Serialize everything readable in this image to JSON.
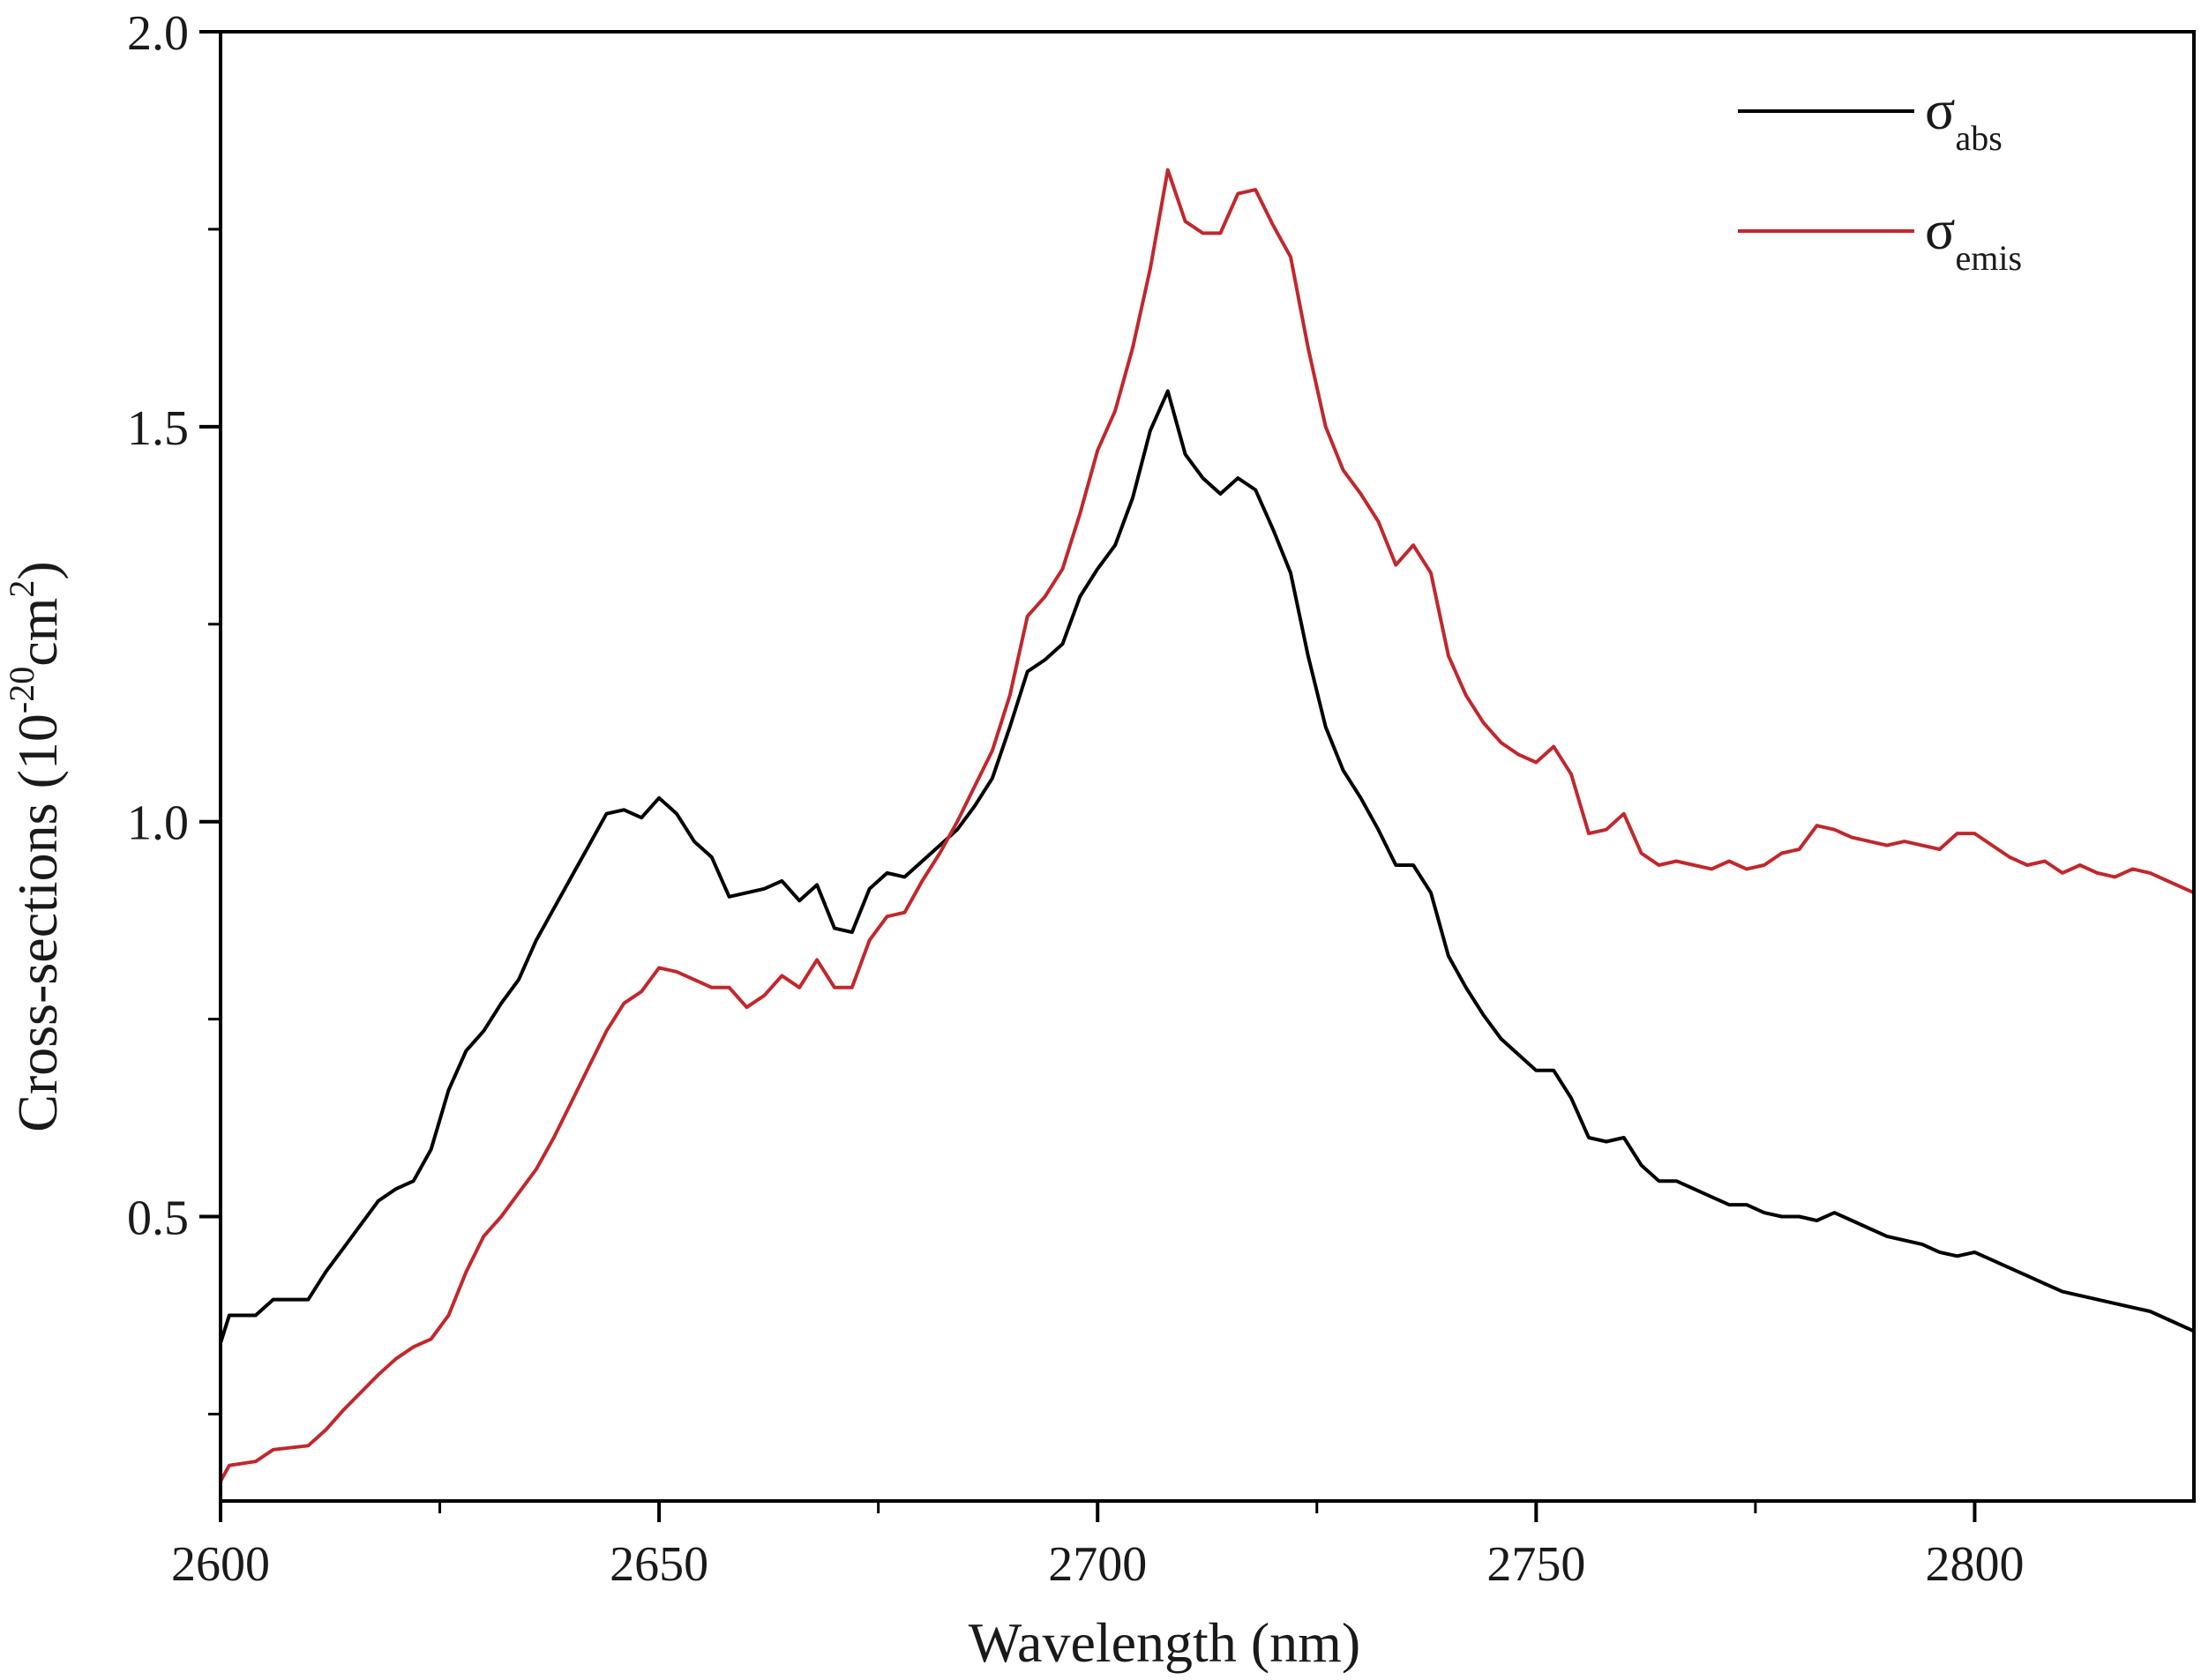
{
  "chart_data": {
    "type": "line",
    "title": "",
    "xlabel": "Wavelength (nm)",
    "ylabel": {
      "prefix": "Cross-sections (10",
      "exponent1": "-20",
      "middle": "cm",
      "exponent2": "2",
      "suffix": ")"
    },
    "xlim": [
      2600,
      2825
    ],
    "ylim": [
      0.14,
      2.0
    ],
    "xticks": [
      2600,
      2650,
      2700,
      2750,
      2800
    ],
    "xtick_labels": [
      "2600",
      "2650",
      "2700",
      "2750",
      "2800"
    ],
    "xminor_step": 25,
    "yticks": [
      0.5,
      1.0,
      1.5,
      2.0
    ],
    "ytick_labels": [
      "0.5",
      "1.0",
      "1.5",
      "2.0"
    ],
    "yminor_step": 0.25,
    "grid": false,
    "legend_position": "top-right",
    "series": [
      {
        "name": "σabs",
        "legend_symbol": "σ",
        "legend_subscript": "abs",
        "color": "#000000",
        "points": [
          [
            2600,
            0.34
          ],
          [
            2601,
            0.375
          ],
          [
            2604,
            0.375
          ],
          [
            2606,
            0.395
          ],
          [
            2610,
            0.395
          ],
          [
            2612,
            0.43
          ],
          [
            2614,
            0.46
          ],
          [
            2618,
            0.52
          ],
          [
            2620,
            0.535
          ],
          [
            2622,
            0.545
          ],
          [
            2624,
            0.585
          ],
          [
            2626,
            0.66
          ],
          [
            2628,
            0.71
          ],
          [
            2630,
            0.735
          ],
          [
            2632,
            0.77
          ],
          [
            2634,
            0.8
          ],
          [
            2636,
            0.85
          ],
          [
            2638,
            0.89
          ],
          [
            2640,
            0.93
          ],
          [
            2642,
            0.97
          ],
          [
            2644,
            1.01
          ],
          [
            2646,
            1.015
          ],
          [
            2648,
            1.005
          ],
          [
            2650,
            1.03
          ],
          [
            2652,
            1.01
          ],
          [
            2654,
            0.975
          ],
          [
            2656,
            0.955
          ],
          [
            2658,
            0.905
          ],
          [
            2660,
            0.91
          ],
          [
            2662,
            0.915
          ],
          [
            2664,
            0.925
          ],
          [
            2666,
            0.9
          ],
          [
            2668,
            0.92
          ],
          [
            2670,
            0.865
          ],
          [
            2672,
            0.86
          ],
          [
            2674,
            0.915
          ],
          [
            2676,
            0.935
          ],
          [
            2678,
            0.93
          ],
          [
            2680,
            0.95
          ],
          [
            2682,
            0.97
          ],
          [
            2684,
            0.99
          ],
          [
            2686,
            1.02
          ],
          [
            2688,
            1.055
          ],
          [
            2690,
            1.12
          ],
          [
            2692,
            1.19
          ],
          [
            2694,
            1.205
          ],
          [
            2696,
            1.225
          ],
          [
            2698,
            1.285
          ],
          [
            2700,
            1.32
          ],
          [
            2702,
            1.35
          ],
          [
            2704,
            1.41
          ],
          [
            2706,
            1.495
          ],
          [
            2708,
            1.545
          ],
          [
            2710,
            1.465
          ],
          [
            2712,
            1.435
          ],
          [
            2714,
            1.415
          ],
          [
            2716,
            1.435
          ],
          [
            2718,
            1.42
          ],
          [
            2720,
            1.37
          ],
          [
            2722,
            1.315
          ],
          [
            2724,
            1.21
          ],
          [
            2726,
            1.12
          ],
          [
            2728,
            1.065
          ],
          [
            2730,
            1.03
          ],
          [
            2732,
            0.99
          ],
          [
            2734,
            0.945
          ],
          [
            2736,
            0.945
          ],
          [
            2738,
            0.91
          ],
          [
            2740,
            0.83
          ],
          [
            2742,
            0.79
          ],
          [
            2744,
            0.755
          ],
          [
            2746,
            0.725
          ],
          [
            2748,
            0.705
          ],
          [
            2750,
            0.685
          ],
          [
            2752,
            0.685
          ],
          [
            2754,
            0.65
          ],
          [
            2756,
            0.6
          ],
          [
            2758,
            0.595
          ],
          [
            2760,
            0.6
          ],
          [
            2762,
            0.565
          ],
          [
            2764,
            0.545
          ],
          [
            2766,
            0.545
          ],
          [
            2768,
            0.535
          ],
          [
            2770,
            0.525
          ],
          [
            2772,
            0.515
          ],
          [
            2774,
            0.515
          ],
          [
            2776,
            0.505
          ],
          [
            2778,
            0.5
          ],
          [
            2780,
            0.5
          ],
          [
            2782,
            0.495
          ],
          [
            2784,
            0.505
          ],
          [
            2786,
            0.495
          ],
          [
            2788,
            0.485
          ],
          [
            2790,
            0.475
          ],
          [
            2792,
            0.47
          ],
          [
            2794,
            0.465
          ],
          [
            2796,
            0.455
          ],
          [
            2798,
            0.45
          ],
          [
            2800,
            0.455
          ],
          [
            2802,
            0.445
          ],
          [
            2804,
            0.435
          ],
          [
            2806,
            0.425
          ],
          [
            2808,
            0.415
          ],
          [
            2810,
            0.405
          ],
          [
            2812,
            0.4
          ],
          [
            2814,
            0.395
          ],
          [
            2816,
            0.39
          ],
          [
            2818,
            0.385
          ],
          [
            2820,
            0.38
          ],
          [
            2822,
            0.37
          ],
          [
            2825,
            0.355
          ]
        ]
      },
      {
        "name": "σemis",
        "legend_symbol": "σ",
        "legend_subscript": "emis",
        "color": "#c0282d",
        "points": [
          [
            2600,
            0.165
          ],
          [
            2601,
            0.185
          ],
          [
            2604,
            0.19
          ],
          [
            2606,
            0.205
          ],
          [
            2610,
            0.21
          ],
          [
            2612,
            0.23
          ],
          [
            2614,
            0.255
          ],
          [
            2618,
            0.3
          ],
          [
            2620,
            0.32
          ],
          [
            2622,
            0.335
          ],
          [
            2624,
            0.345
          ],
          [
            2626,
            0.375
          ],
          [
            2628,
            0.43
          ],
          [
            2630,
            0.475
          ],
          [
            2632,
            0.5
          ],
          [
            2634,
            0.53
          ],
          [
            2636,
            0.56
          ],
          [
            2638,
            0.6
          ],
          [
            2640,
            0.645
          ],
          [
            2642,
            0.69
          ],
          [
            2644,
            0.735
          ],
          [
            2646,
            0.77
          ],
          [
            2648,
            0.785
          ],
          [
            2650,
            0.815
          ],
          [
            2652,
            0.81
          ],
          [
            2654,
            0.8
          ],
          [
            2656,
            0.79
          ],
          [
            2658,
            0.79
          ],
          [
            2660,
            0.765
          ],
          [
            2662,
            0.78
          ],
          [
            2664,
            0.805
          ],
          [
            2666,
            0.79
          ],
          [
            2668,
            0.825
          ],
          [
            2670,
            0.79
          ],
          [
            2672,
            0.79
          ],
          [
            2674,
            0.85
          ],
          [
            2676,
            0.88
          ],
          [
            2678,
            0.885
          ],
          [
            2680,
            0.925
          ],
          [
            2682,
            0.96
          ],
          [
            2684,
            1.0
          ],
          [
            2686,
            1.045
          ],
          [
            2688,
            1.09
          ],
          [
            2690,
            1.16
          ],
          [
            2692,
            1.26
          ],
          [
            2694,
            1.285
          ],
          [
            2696,
            1.32
          ],
          [
            2698,
            1.39
          ],
          [
            2700,
            1.47
          ],
          [
            2702,
            1.52
          ],
          [
            2704,
            1.6
          ],
          [
            2706,
            1.7
          ],
          [
            2708,
            1.825
          ],
          [
            2710,
            1.76
          ],
          [
            2712,
            1.745
          ],
          [
            2714,
            1.745
          ],
          [
            2716,
            1.795
          ],
          [
            2718,
            1.8
          ],
          [
            2720,
            1.755
          ],
          [
            2722,
            1.715
          ],
          [
            2724,
            1.6
          ],
          [
            2726,
            1.5
          ],
          [
            2728,
            1.445
          ],
          [
            2730,
            1.415
          ],
          [
            2732,
            1.38
          ],
          [
            2734,
            1.325
          ],
          [
            2736,
            1.35
          ],
          [
            2738,
            1.315
          ],
          [
            2740,
            1.21
          ],
          [
            2742,
            1.16
          ],
          [
            2744,
            1.125
          ],
          [
            2746,
            1.1
          ],
          [
            2748,
            1.085
          ],
          [
            2750,
            1.075
          ],
          [
            2752,
            1.095
          ],
          [
            2754,
            1.06
          ],
          [
            2756,
            0.985
          ],
          [
            2758,
            0.99
          ],
          [
            2760,
            1.01
          ],
          [
            2762,
            0.96
          ],
          [
            2764,
            0.945
          ],
          [
            2766,
            0.95
          ],
          [
            2768,
            0.945
          ],
          [
            2770,
            0.94
          ],
          [
            2772,
            0.95
          ],
          [
            2774,
            0.94
          ],
          [
            2776,
            0.945
          ],
          [
            2778,
            0.96
          ],
          [
            2780,
            0.965
          ],
          [
            2782,
            0.995
          ],
          [
            2784,
            0.99
          ],
          [
            2786,
            0.98
          ],
          [
            2788,
            0.975
          ],
          [
            2790,
            0.97
          ],
          [
            2792,
            0.975
          ],
          [
            2794,
            0.97
          ],
          [
            2796,
            0.965
          ],
          [
            2798,
            0.985
          ],
          [
            2800,
            0.985
          ],
          [
            2802,
            0.97
          ],
          [
            2804,
            0.955
          ],
          [
            2806,
            0.945
          ],
          [
            2808,
            0.95
          ],
          [
            2810,
            0.935
          ],
          [
            2812,
            0.945
          ],
          [
            2814,
            0.935
          ],
          [
            2816,
            0.93
          ],
          [
            2818,
            0.94
          ],
          [
            2820,
            0.935
          ],
          [
            2822,
            0.925
          ],
          [
            2825,
            0.91
          ]
        ]
      }
    ]
  }
}
